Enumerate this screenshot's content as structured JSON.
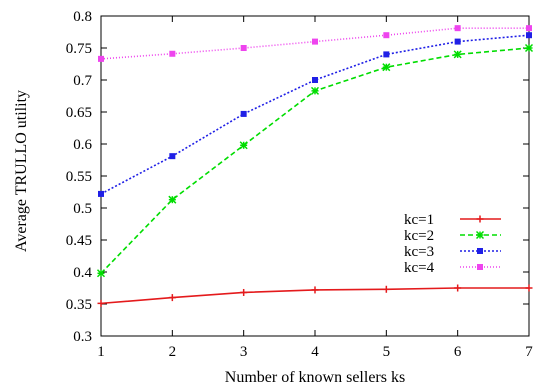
{
  "chart_data": {
    "type": "line",
    "title": "",
    "xlabel": "Number of known sellers ks",
    "ylabel": "Average TRULLO utility",
    "x": [
      1,
      2,
      3,
      4,
      5,
      6,
      7
    ],
    "xlim": [
      1,
      7
    ],
    "ylim": [
      0.3,
      0.8
    ],
    "xticks": [
      "1",
      "2",
      "3",
      "4",
      "5",
      "6",
      "7"
    ],
    "yticks": [
      "0.3",
      "0.35",
      "0.4",
      "0.45",
      "0.5",
      "0.55",
      "0.6",
      "0.65",
      "0.7",
      "0.75",
      "0.8"
    ],
    "grid": false,
    "legend_position": "inside-right",
    "series": [
      {
        "name": "kc=1",
        "color": "#e41a1c",
        "dash": "solid",
        "marker": "plus",
        "values": [
          0.351,
          0.36,
          0.368,
          0.372,
          0.373,
          0.375,
          0.375
        ]
      },
      {
        "name": "kc=2",
        "color": "#00dd00",
        "dash": "dashed",
        "marker": "cross",
        "values": [
          0.398,
          0.513,
          0.598,
          0.683,
          0.72,
          0.74,
          0.75
        ]
      },
      {
        "name": "kc=3",
        "color": "#1f1fe6",
        "dash": "dotted",
        "marker": "square",
        "values": [
          0.522,
          0.581,
          0.647,
          0.7,
          0.74,
          0.76,
          0.77
        ]
      },
      {
        "name": "kc=4",
        "color": "#ee44ee",
        "dash": "fine-dotted",
        "marker": "square",
        "values": [
          0.733,
          0.741,
          0.75,
          0.76,
          0.77,
          0.781,
          0.781
        ]
      }
    ]
  }
}
